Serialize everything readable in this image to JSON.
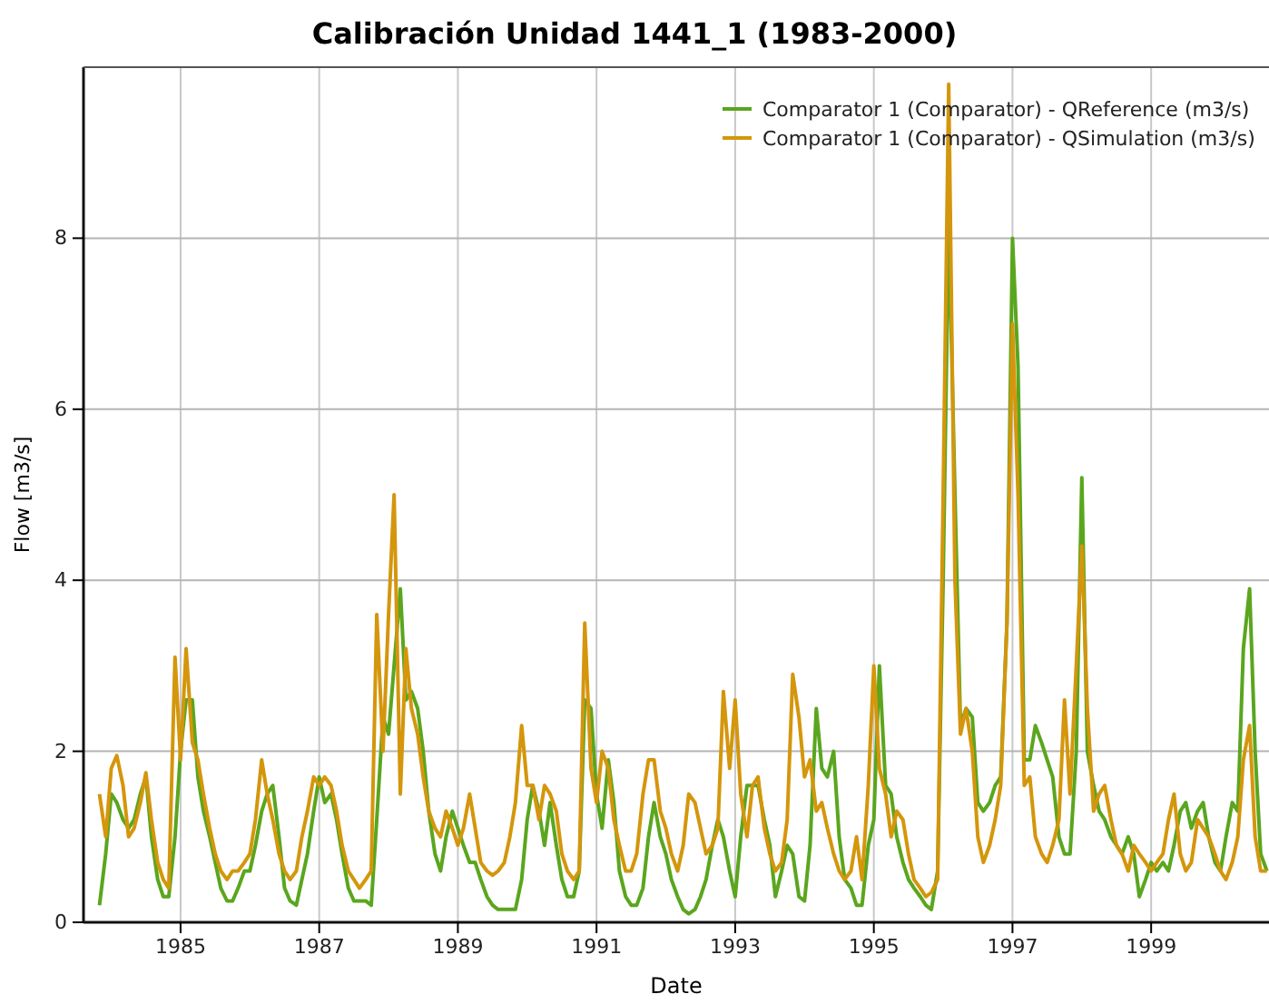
{
  "chart_data": {
    "type": "line",
    "title": "Calibración Unidad 1441_1 (1983-2000)",
    "xlabel": "Date",
    "ylabel": "Flow [m3/s]",
    "x": [
      1983.83,
      1983.92,
      1984,
      1984.08,
      1984.17,
      1984.25,
      1984.33,
      1984.42,
      1984.5,
      1984.58,
      1984.67,
      1984.75,
      1984.83,
      1984.92,
      1985,
      1985.08,
      1985.17,
      1985.25,
      1985.33,
      1985.42,
      1985.5,
      1985.58,
      1985.67,
      1985.75,
      1985.83,
      1985.92,
      1986,
      1986.08,
      1986.17,
      1986.25,
      1986.33,
      1986.42,
      1986.5,
      1986.58,
      1986.67,
      1986.75,
      1986.83,
      1986.92,
      1987,
      1987.08,
      1987.17,
      1987.25,
      1987.33,
      1987.42,
      1987.5,
      1987.58,
      1987.67,
      1987.75,
      1987.83,
      1987.92,
      1988,
      1988.08,
      1988.17,
      1988.25,
      1988.33,
      1988.42,
      1988.5,
      1988.58,
      1988.67,
      1988.75,
      1988.83,
      1988.92,
      1989,
      1989.08,
      1989.17,
      1989.25,
      1989.33,
      1989.42,
      1989.5,
      1989.58,
      1989.67,
      1989.75,
      1989.83,
      1989.92,
      1990,
      1990.08,
      1990.17,
      1990.25,
      1990.33,
      1990.42,
      1990.5,
      1990.58,
      1990.67,
      1990.75,
      1990.83,
      1990.92,
      1991,
      1991.08,
      1991.17,
      1991.25,
      1991.33,
      1991.42,
      1991.5,
      1991.58,
      1991.67,
      1991.75,
      1991.83,
      1991.92,
      1992,
      1992.08,
      1992.17,
      1992.25,
      1992.33,
      1992.42,
      1992.5,
      1992.58,
      1992.67,
      1992.75,
      1992.83,
      1992.92,
      1993,
      1993.08,
      1993.17,
      1993.25,
      1993.33,
      1993.42,
      1993.5,
      1993.58,
      1993.67,
      1993.75,
      1993.83,
      1993.92,
      1994,
      1994.08,
      1994.17,
      1994.25,
      1994.33,
      1994.42,
      1994.5,
      1994.58,
      1994.67,
      1994.75,
      1994.83,
      1994.92,
      1995,
      1995.08,
      1995.17,
      1995.25,
      1995.33,
      1995.42,
      1995.5,
      1995.58,
      1995.67,
      1995.75,
      1995.83,
      1995.92,
      1996,
      1996.08,
      1996.17,
      1996.25,
      1996.33,
      1996.42,
      1996.5,
      1996.58,
      1996.67,
      1996.75,
      1996.83,
      1996.92,
      1997,
      1997.08,
      1997.17,
      1997.25,
      1997.33,
      1997.42,
      1997.5,
      1997.58,
      1997.67,
      1997.75,
      1997.83,
      1997.92,
      1998,
      1998.08,
      1998.17,
      1998.25,
      1998.33,
      1998.42,
      1998.5,
      1998.58,
      1998.67,
      1998.75,
      1998.83,
      1998.92,
      1999,
      1999.08,
      1999.17,
      1999.25,
      1999.33,
      1999.42,
      1999.5,
      1999.58,
      1999.67,
      1999.75,
      1999.83,
      1999.92,
      2000,
      2000.08,
      2000.17,
      2000.25,
      2000.33,
      2000.42,
      2000.5,
      2000.58,
      2000.67
    ],
    "series": [
      {
        "name": "Comparator 1 (Comparator) - QReference (m3/s)",
        "color": "#5aa61e",
        "values": [
          0.2,
          0.8,
          1.5,
          1.4,
          1.2,
          1.1,
          1.2,
          1.5,
          1.7,
          1.0,
          0.5,
          0.3,
          0.3,
          1.0,
          2.0,
          2.6,
          2.6,
          1.7,
          1.3,
          1.0,
          0.7,
          0.4,
          0.25,
          0.25,
          0.4,
          0.6,
          0.6,
          0.9,
          1.3,
          1.5,
          1.6,
          1.0,
          0.4,
          0.25,
          0.2,
          0.5,
          0.8,
          1.3,
          1.7,
          1.4,
          1.5,
          1.2,
          0.8,
          0.4,
          0.25,
          0.25,
          0.25,
          0.2,
          1.2,
          2.4,
          2.2,
          3.0,
          3.9,
          2.6,
          2.7,
          2.5,
          2.0,
          1.3,
          0.8,
          0.6,
          1.0,
          1.3,
          1.1,
          0.9,
          0.7,
          0.7,
          0.5,
          0.3,
          0.2,
          0.15,
          0.15,
          0.15,
          0.15,
          0.5,
          1.2,
          1.6,
          1.3,
          0.9,
          1.4,
          0.9,
          0.5,
          0.3,
          0.3,
          0.6,
          2.6,
          2.5,
          1.5,
          1.1,
          1.9,
          1.4,
          0.6,
          0.3,
          0.2,
          0.2,
          0.4,
          1.0,
          1.4,
          1.0,
          0.8,
          0.5,
          0.3,
          0.15,
          0.1,
          0.15,
          0.3,
          0.5,
          0.9,
          1.2,
          1.0,
          0.6,
          0.3,
          1.0,
          1.6,
          1.6,
          1.6,
          1.2,
          0.9,
          0.3,
          0.6,
          0.9,
          0.8,
          0.3,
          0.25,
          0.9,
          2.5,
          1.8,
          1.7,
          2.0,
          1.0,
          0.5,
          0.4,
          0.2,
          0.2,
          0.9,
          1.2,
          3.0,
          1.6,
          1.5,
          1.0,
          0.7,
          0.5,
          0.4,
          0.3,
          0.2,
          0.15,
          0.6,
          4.0,
          8.2,
          5.0,
          2.3,
          2.5,
          2.4,
          1.4,
          1.3,
          1.4,
          1.6,
          1.7,
          3.5,
          8.0,
          6.5,
          1.9,
          1.9,
          2.3,
          2.1,
          1.9,
          1.7,
          1.0,
          0.8,
          0.8,
          2.0,
          5.2,
          2.0,
          1.6,
          1.3,
          1.2,
          1.0,
          0.9,
          0.8,
          1.0,
          0.8,
          0.3,
          0.5,
          0.7,
          0.6,
          0.7,
          0.6,
          0.9,
          1.3,
          1.4,
          1.1,
          1.3,
          1.4,
          1.0,
          0.7,
          0.6,
          1.0,
          1.4,
          1.3,
          3.2,
          3.9,
          2.0,
          0.8,
          0.6
        ]
      },
      {
        "name": "Comparator 1 (Comparator) - QSimulation (m3/s)",
        "color": "#d4960c",
        "values": [
          1.5,
          1.0,
          1.8,
          1.95,
          1.6,
          1.0,
          1.1,
          1.4,
          1.75,
          1.2,
          0.7,
          0.5,
          0.4,
          3.1,
          1.9,
          3.2,
          2.1,
          1.9,
          1.5,
          1.1,
          0.8,
          0.6,
          0.5,
          0.6,
          0.6,
          0.7,
          0.8,
          1.2,
          1.9,
          1.5,
          1.2,
          0.8,
          0.6,
          0.5,
          0.6,
          1.0,
          1.3,
          1.7,
          1.6,
          1.7,
          1.6,
          1.3,
          0.9,
          0.6,
          0.5,
          0.4,
          0.5,
          0.6,
          3.6,
          2.0,
          3.6,
          5.0,
          1.5,
          3.2,
          2.5,
          2.2,
          1.7,
          1.3,
          1.1,
          1.0,
          1.3,
          1.1,
          0.9,
          1.1,
          1.5,
          1.1,
          0.7,
          0.6,
          0.55,
          0.6,
          0.7,
          1.0,
          1.4,
          2.3,
          1.6,
          1.6,
          1.2,
          1.6,
          1.5,
          1.3,
          0.8,
          0.6,
          0.5,
          0.6,
          3.5,
          1.8,
          1.4,
          2.0,
          1.8,
          1.2,
          0.9,
          0.6,
          0.6,
          0.8,
          1.5,
          1.9,
          1.9,
          1.3,
          1.1,
          0.8,
          0.6,
          0.9,
          1.5,
          1.4,
          1.1,
          0.8,
          0.9,
          1.1,
          2.7,
          1.8,
          2.6,
          1.5,
          1.0,
          1.6,
          1.7,
          1.1,
          0.8,
          0.6,
          0.7,
          1.2,
          2.9,
          2.4,
          1.7,
          1.9,
          1.3,
          1.4,
          1.1,
          0.8,
          0.6,
          0.5,
          0.6,
          1.0,
          0.5,
          1.6,
          3.0,
          1.8,
          1.5,
          1.0,
          1.3,
          1.2,
          0.8,
          0.5,
          0.4,
          0.3,
          0.35,
          0.5,
          5.0,
          9.8,
          4.0,
          2.2,
          2.5,
          2.0,
          1.0,
          0.7,
          0.9,
          1.2,
          1.6,
          3.5,
          7.0,
          5.0,
          1.6,
          1.7,
          1.0,
          0.8,
          0.7,
          0.9,
          1.2,
          2.6,
          1.5,
          3.0,
          4.4,
          2.5,
          1.3,
          1.5,
          1.6,
          1.2,
          0.9,
          0.8,
          0.6,
          0.9,
          0.8,
          0.7,
          0.6,
          0.7,
          0.8,
          1.2,
          1.5,
          0.8,
          0.6,
          0.7,
          1.2,
          1.1,
          1.0,
          0.8,
          0.6,
          0.5,
          0.7,
          1.0,
          1.9,
          2.3,
          1.0,
          0.6,
          0.6
        ]
      }
    ],
    "xlim": [
      1983.6,
      2000.7
    ],
    "xticks": [
      1985,
      1987,
      1989,
      1991,
      1993,
      1995,
      1997,
      1999
    ],
    "ylim": [
      0,
      10
    ],
    "yticks": [
      0,
      2,
      4,
      6,
      8
    ],
    "grid": true,
    "legend": "top right",
    "line_style": "solid"
  }
}
